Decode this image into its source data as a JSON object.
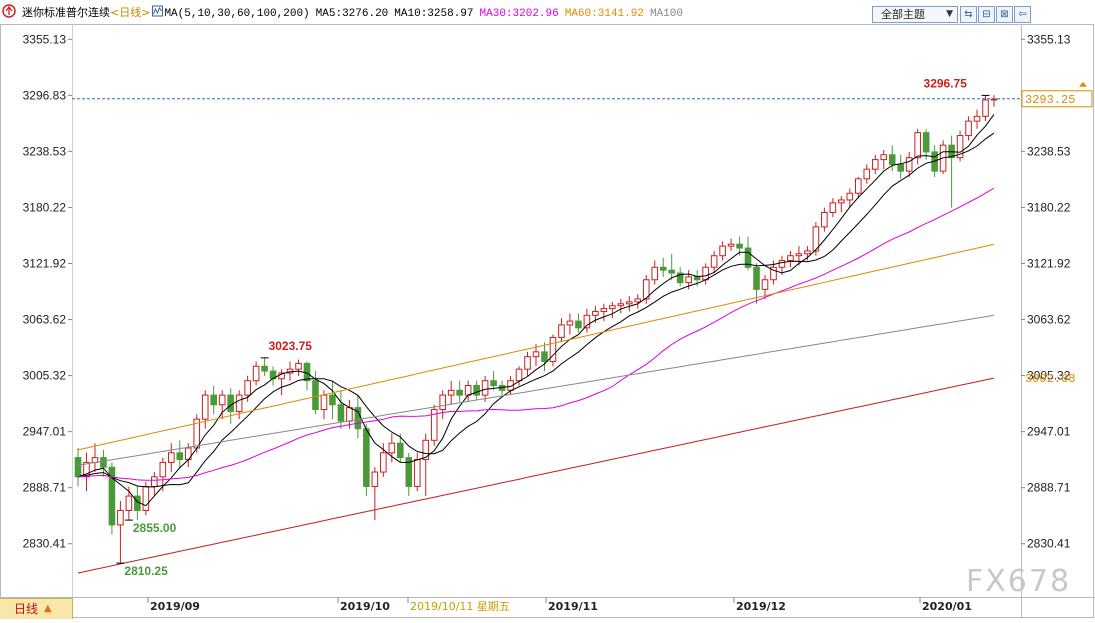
{
  "header": {
    "symbol": "迷你标准普尔连续",
    "period_tag": "<日线>",
    "ma_label": "MA(5,10,30,60,100,200)",
    "ma_items": [
      {
        "text": "MA5:3276.20",
        "color": "#000000"
      },
      {
        "text": "MA10:3258.97",
        "color": "#000000"
      },
      {
        "text": "MA30:3202.96",
        "color": "#e000e0"
      },
      {
        "text": "MA60:3141.92",
        "color": "#e08a00"
      },
      {
        "text": "MA100",
        "color": "#888888"
      }
    ],
    "topic_label": "全部主题",
    "buttons": [
      "⇆",
      "⊟",
      "⊠",
      "⇦"
    ]
  },
  "footer": {
    "period_label": "日线",
    "date_labels": [
      "2019/09",
      "2019/10",
      "2019/10/11 星期五",
      "2019/11",
      "2019/12",
      "2020/01"
    ]
  },
  "watermark": "FX678",
  "colors": {
    "up": "#cc1f1f",
    "down": "#4a9a3a",
    "grid": "#d9d9d9",
    "ma5": "#000000",
    "ma10": "#000000",
    "ma30": "#e000e0",
    "ma60": "#e08a00",
    "ma100": "#888888",
    "ma200": "#c02020",
    "axis_text": "#222222"
  },
  "chart_data": {
    "type": "candlestick",
    "y_ticks": [
      3355.13,
      3296.83,
      3238.53,
      3180.22,
      3121.92,
      3063.62,
      3005.32,
      2947.01,
      2888.71,
      2830.41
    ],
    "ylim": [
      2775,
      3370
    ],
    "last_price": 3293.25,
    "ma200_last": 3002.68,
    "annotations": [
      {
        "text": "3296.75",
        "value": 3296.75,
        "color": "#cc1f1f"
      },
      {
        "text": "3023.75",
        "value": 3023.75,
        "color": "#cc1f1f"
      },
      {
        "text": "2855.00",
        "value": 2855.0,
        "color": "#4a9a3a"
      },
      {
        "text": "2810.25",
        "value": 2810.25,
        "color": "#4a9a3a"
      }
    ],
    "ohlc": [
      [
        2920,
        2930,
        2890,
        2900
      ],
      [
        2900,
        2925,
        2885,
        2915
      ],
      [
        2915,
        2935,
        2905,
        2920
      ],
      [
        2920,
        2928,
        2900,
        2910
      ],
      [
        2910,
        2915,
        2840,
        2850
      ],
      [
        2850,
        2875,
        2810,
        2865
      ],
      [
        2865,
        2890,
        2855,
        2880
      ],
      [
        2880,
        2890,
        2855,
        2865
      ],
      [
        2865,
        2895,
        2860,
        2890
      ],
      [
        2890,
        2905,
        2880,
        2900
      ],
      [
        2900,
        2920,
        2885,
        2915
      ],
      [
        2915,
        2935,
        2905,
        2925
      ],
      [
        2925,
        2938,
        2908,
        2918
      ],
      [
        2918,
        2935,
        2910,
        2930
      ],
      [
        2930,
        2965,
        2925,
        2960
      ],
      [
        2960,
        2990,
        2950,
        2985
      ],
      [
        2985,
        2995,
        2965,
        2975
      ],
      [
        2975,
        2990,
        2960,
        2985
      ],
      [
        2985,
        2992,
        2955,
        2968
      ],
      [
        2968,
        2990,
        2960,
        2985
      ],
      [
        2985,
        3005,
        2978,
        3000
      ],
      [
        3000,
        3020,
        2995,
        3015
      ],
      [
        3015,
        3024,
        3005,
        3010
      ],
      [
        3010,
        3015,
        2995,
        3002
      ],
      [
        3002,
        3012,
        2985,
        3008
      ],
      [
        3008,
        3020,
        3000,
        3012
      ],
      [
        3012,
        3022,
        3005,
        3018
      ],
      [
        3018,
        3020,
        2990,
        3000
      ],
      [
        3000,
        3010,
        2965,
        2970
      ],
      [
        2970,
        2990,
        2960,
        2985
      ],
      [
        2985,
        3000,
        2960,
        2975
      ],
      [
        2975,
        2990,
        2950,
        2958
      ],
      [
        2958,
        2980,
        2950,
        2972
      ],
      [
        2972,
        2985,
        2940,
        2950
      ],
      [
        2950,
        2955,
        2880,
        2890
      ],
      [
        2890,
        2910,
        2855,
        2905
      ],
      [
        2905,
        2935,
        2900,
        2925
      ],
      [
        2925,
        2945,
        2915,
        2935
      ],
      [
        2935,
        2945,
        2915,
        2920
      ],
      [
        2920,
        2925,
        2880,
        2890
      ],
      [
        2890,
        2925,
        2885,
        2918
      ],
      [
        2918,
        2945,
        2880,
        2938
      ],
      [
        2938,
        2975,
        2932,
        2970
      ],
      [
        2970,
        2990,
        2960,
        2985
      ],
      [
        2985,
        3000,
        2975,
        2990
      ],
      [
        2990,
        3000,
        2978,
        2985
      ],
      [
        2985,
        3000,
        2978,
        2995
      ],
      [
        2995,
        3000,
        2980,
        2985
      ],
      [
        2985,
        3005,
        2978,
        3000
      ],
      [
        3000,
        3010,
        2990,
        2995
      ],
      [
        2995,
        3000,
        2985,
        2990
      ],
      [
        2990,
        3005,
        2985,
        3000
      ],
      [
        3000,
        3015,
        2995,
        3012
      ],
      [
        3012,
        3030,
        3005,
        3025
      ],
      [
        3025,
        3038,
        3015,
        3030
      ],
      [
        3030,
        3040,
        3010,
        3020
      ],
      [
        3020,
        3048,
        3015,
        3045
      ],
      [
        3045,
        3065,
        3040,
        3058
      ],
      [
        3058,
        3070,
        3048,
        3062
      ],
      [
        3062,
        3070,
        3050,
        3055
      ],
      [
        3055,
        3075,
        3050,
        3068
      ],
      [
        3068,
        3078,
        3060,
        3072
      ],
      [
        3072,
        3080,
        3062,
        3075
      ],
      [
        3075,
        3082,
        3065,
        3078
      ],
      [
        3078,
        3085,
        3070,
        3080
      ],
      [
        3080,
        3088,
        3072,
        3082
      ],
      [
        3082,
        3090,
        3075,
        3085
      ],
      [
        3085,
        3110,
        3080,
        3105
      ],
      [
        3105,
        3125,
        3100,
        3118
      ],
      [
        3118,
        3128,
        3108,
        3115
      ],
      [
        3115,
        3132,
        3105,
        3112
      ],
      [
        3112,
        3118,
        3098,
        3102
      ],
      [
        3102,
        3115,
        3095,
        3108
      ],
      [
        3108,
        3115,
        3098,
        3105
      ],
      [
        3105,
        3122,
        3100,
        3118
      ],
      [
        3118,
        3135,
        3112,
        3130
      ],
      [
        3130,
        3145,
        3125,
        3140
      ],
      [
        3140,
        3148,
        3135,
        3142
      ],
      [
        3142,
        3150,
        3130,
        3138
      ],
      [
        3138,
        3150,
        3115,
        3118
      ],
      [
        3118,
        3122,
        3080,
        3095
      ],
      [
        3095,
        3110,
        3085,
        3105
      ],
      [
        3105,
        3125,
        3100,
        3118
      ],
      [
        3118,
        3130,
        3110,
        3125
      ],
      [
        3125,
        3135,
        3118,
        3130
      ],
      [
        3130,
        3140,
        3120,
        3132
      ],
      [
        3132,
        3140,
        3125,
        3135
      ],
      [
        3135,
        3165,
        3130,
        3160
      ],
      [
        3160,
        3180,
        3155,
        3175
      ],
      [
        3175,
        3190,
        3170,
        3185
      ],
      [
        3185,
        3192,
        3175,
        3188
      ],
      [
        3188,
        3200,
        3180,
        3195
      ],
      [
        3195,
        3212,
        3190,
        3210
      ],
      [
        3210,
        3225,
        3205,
        3220
      ],
      [
        3220,
        3235,
        3215,
        3230
      ],
      [
        3230,
        3240,
        3220,
        3235
      ],
      [
        3235,
        3245,
        3218,
        3225
      ],
      [
        3225,
        3235,
        3210,
        3218
      ],
      [
        3218,
        3238,
        3212,
        3232
      ],
      [
        3232,
        3262,
        3225,
        3258
      ],
      [
        3258,
        3262,
        3230,
        3238
      ],
      [
        3238,
        3245,
        3212,
        3218
      ],
      [
        3218,
        3250,
        3215,
        3245
      ],
      [
        3245,
        3255,
        3180,
        3232
      ],
      [
        3232,
        3260,
        3228,
        3255
      ],
      [
        3255,
        3275,
        3250,
        3270
      ],
      [
        3270,
        3282,
        3262,
        3275
      ],
      [
        3275,
        3297,
        3270,
        3292
      ],
      [
        3292,
        3297,
        3285,
        3293
      ]
    ]
  }
}
